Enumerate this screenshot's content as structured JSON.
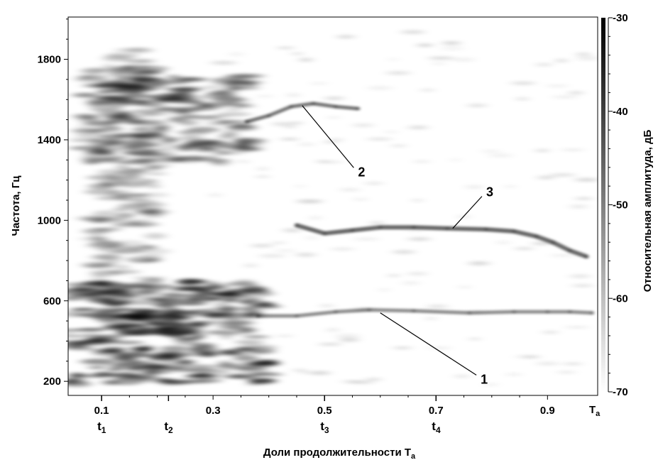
{
  "chart_data": {
    "type": "heatmap",
    "xlabel": "Доли продолжительности",
    "xlabel_symbol": {
      "main": "T",
      "sub": "a"
    },
    "ylabel": "Частота, Гц",
    "colorbar_label": "Относительная амплитуда, дБ",
    "xlim": [
      0.04,
      0.99
    ],
    "ylim": [
      130,
      2010
    ],
    "x_ticks": [
      "0.1",
      "0.3",
      "0.5",
      "0.7",
      "0.9"
    ],
    "x_ticks_numeric": [
      0.1,
      0.3,
      0.5,
      0.7,
      0.9
    ],
    "x_end_label": {
      "main": "T",
      "sub": "a"
    },
    "time_marks": [
      {
        "main": "t",
        "sub": "1",
        "x": 0.1
      },
      {
        "main": "t",
        "sub": "2",
        "x": 0.22
      },
      {
        "main": "t",
        "sub": "3",
        "x": 0.5
      },
      {
        "main": "t",
        "sub": "4",
        "x": 0.7
      }
    ],
    "y_ticks": [
      "200",
      "600",
      "1000",
      "1400",
      "1800"
    ],
    "y_ticks_numeric": [
      200,
      600,
      1000,
      1400,
      1800
    ],
    "colorbar_ticks": [
      "-30",
      "-40",
      "-50",
      "-60",
      "-70"
    ],
    "colorbar_ticks_numeric": [
      -30,
      -40,
      -50,
      -60,
      -70
    ],
    "colorbar_range": [
      -70,
      -30
    ],
    "grid": false,
    "colormap": "white-to-black",
    "annotations": [
      {
        "label": "1",
        "point": [
          0.6,
          540
        ],
        "label_at": [
          0.78,
          210
        ]
      },
      {
        "label": "2",
        "point": [
          0.46,
          1570
        ],
        "label_at": [
          0.56,
          1240
        ]
      },
      {
        "label": "3",
        "point": [
          0.73,
          960
        ],
        "label_at": [
          0.79,
          1140
        ]
      }
    ],
    "series": [
      {
        "label": "1",
        "x": [
          0.38,
          0.45,
          0.52,
          0.58,
          0.66,
          0.76,
          0.84,
          0.9,
          0.94,
          0.98
        ],
        "y": [
          525,
          525,
          545,
          555,
          550,
          540,
          545,
          545,
          545,
          540
        ]
      },
      {
        "label": "2",
        "x": [
          0.36,
          0.4,
          0.44,
          0.48,
          0.52,
          0.56
        ],
        "y": [
          1490,
          1520,
          1565,
          1580,
          1565,
          1555
        ]
      },
      {
        "label": "3",
        "x": [
          0.45,
          0.5,
          0.55,
          0.6,
          0.66,
          0.72,
          0.79,
          0.84,
          0.88,
          0.91,
          0.94,
          0.97
        ],
        "y": [
          975,
          935,
          950,
          965,
          965,
          960,
          955,
          945,
          920,
          890,
          850,
          820
        ]
      }
    ],
    "regions": [
      {
        "x": [
          0.04,
          0.4
        ],
        "y": [
          180,
          700
        ],
        "level_db": -42
      },
      {
        "x": [
          0.1,
          0.26
        ],
        "y": [
          420,
          560
        ],
        "level_db": -34
      },
      {
        "x": [
          0.07,
          0.37
        ],
        "y": [
          1280,
          1720
        ],
        "level_db": -48
      },
      {
        "x": [
          0.08,
          0.2
        ],
        "y": [
          600,
          1850
        ],
        "level_db": -55
      }
    ]
  }
}
